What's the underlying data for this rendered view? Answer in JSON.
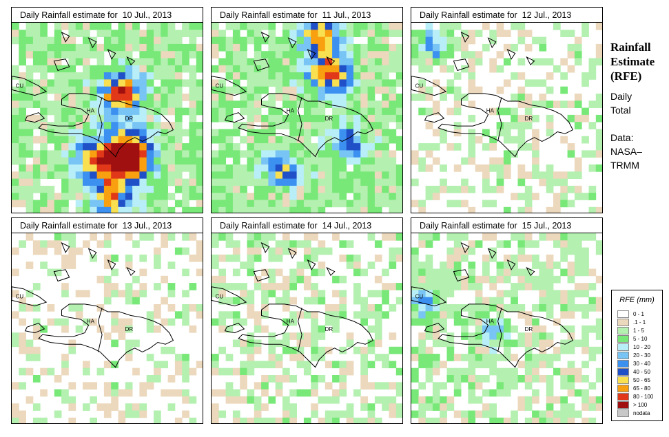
{
  "panels": [
    {
      "title": "Daily Rainfall estimate for  10 Jul., 2013",
      "date": "10 Jul., 2013",
      "intensity": 5
    },
    {
      "title": "Daily Rainfall estimate for  11 Jul., 2013",
      "date": "11 Jul., 2013",
      "intensity": 4
    },
    {
      "title": "Daily Rainfall estimate for  12 Jul., 2013",
      "date": "12 Jul., 2013",
      "intensity": 1
    },
    {
      "title": "Daily Rainfall estimate for  13 Jul., 2013",
      "date": "13 Jul., 2013",
      "intensity": 0
    },
    {
      "title": "Daily Rainfall estimate for  14 Jul., 2013",
      "date": "14 Jul., 2013",
      "intensity": 1
    },
    {
      "title": "Daily Rainfall estimate for  15 Jul., 2013",
      "date": "15 Jul., 2013",
      "intensity": 2
    }
  ],
  "map_labels": {
    "cuba": "CU",
    "haiti": "HA",
    "dominican_republic": "DR"
  },
  "side_info": {
    "title": [
      "Rainfall",
      "Estimate",
      "(RFE)"
    ],
    "period": [
      "Daily",
      "Total"
    ],
    "source": [
      "Data:",
      "NASA–",
      "TRMM"
    ]
  },
  "legend": {
    "title": "RFE (mm)",
    "items": [
      {
        "label": "0 - 1",
        "color": "#ffffff"
      },
      {
        "label": ".1 - 1",
        "color": "#ecd8bc"
      },
      {
        "label": "1 - 5",
        "color": "#b4f0b0"
      },
      {
        "label": "5 - 10",
        "color": "#78e878"
      },
      {
        "label": "10 - 20",
        "color": "#b8eef8"
      },
      {
        "label": "20 - 30",
        "color": "#78c4f4"
      },
      {
        "label": "30 - 40",
        "color": "#3c90f0"
      },
      {
        "label": "40 - 50",
        "color": "#2050c8"
      },
      {
        "label": "50 - 65",
        "color": "#f8e050"
      },
      {
        "label": "65 - 80",
        "color": "#f8a010"
      },
      {
        "label": "80 - 100",
        "color": "#e03818"
      },
      {
        "label": "> 100",
        "color": "#a01010"
      },
      {
        "label": "nodata",
        "color": "#c8c8c8"
      }
    ]
  }
}
